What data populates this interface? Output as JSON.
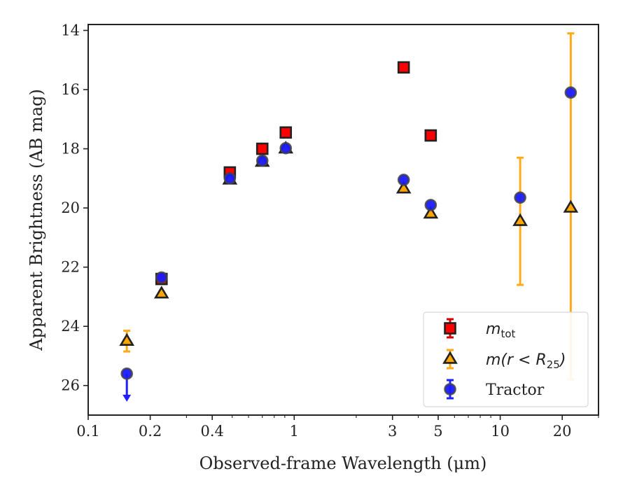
{
  "chart_data": {
    "type": "scatter",
    "title": "",
    "xlabel": "Observed-frame Wavelength (μm)",
    "ylabel": "Apparent Brightness (AB mag)",
    "xscale": "log",
    "xlim": [
      0.1,
      30
    ],
    "ylim": [
      27,
      13.8
    ],
    "y_inverted": true,
    "x_ticks": [
      {
        "value": 0.1,
        "label": "0.1"
      },
      {
        "value": 0.2,
        "label": "0.2"
      },
      {
        "value": 0.4,
        "label": "0.4"
      },
      {
        "value": 1,
        "label": "1"
      },
      {
        "value": 3,
        "label": "3"
      },
      {
        "value": 5,
        "label": "5"
      },
      {
        "value": 10,
        "label": "10"
      },
      {
        "value": 20,
        "label": "20"
      }
    ],
    "x_minor_ticks": [
      0.3,
      0.5,
      0.6,
      0.7,
      0.8,
      0.9,
      2,
      4,
      6,
      7,
      8,
      9,
      30
    ],
    "y_ticks": [
      {
        "value": 14,
        "label": "14"
      },
      {
        "value": 16,
        "label": "16"
      },
      {
        "value": 18,
        "label": "18"
      },
      {
        "value": 20,
        "label": "20"
      },
      {
        "value": 22,
        "label": "22"
      },
      {
        "value": 24,
        "label": "24"
      },
      {
        "value": 26,
        "label": "26"
      }
    ],
    "grid": false,
    "legend_position": "bottom-right",
    "series": [
      {
        "name": "m_tot",
        "legend_main": "m",
        "legend_sub": "tot",
        "marker": "square",
        "color": "#ff0000",
        "edge_color": "#222222",
        "error_color": "#d40000",
        "points": [
          {
            "x": 0.227,
            "y": 22.4
          },
          {
            "x": 0.487,
            "y": 18.8
          },
          {
            "x": 0.7,
            "y": 18.0
          },
          {
            "x": 0.91,
            "y": 17.45
          },
          {
            "x": 3.4,
            "y": 15.25
          },
          {
            "x": 4.6,
            "y": 17.55
          }
        ]
      },
      {
        "name": "m(r<R25)",
        "legend_main": "m(r < R",
        "legend_sub": "25",
        "legend_close": ")",
        "marker": "triangle",
        "color": "#ffa500",
        "edge_color": "#222222",
        "error_color": "#ffaa1a",
        "points": [
          {
            "x": 0.154,
            "y": 24.5,
            "ylow": 24.15,
            "yhigh": 24.85
          },
          {
            "x": 0.227,
            "y": 22.9
          },
          {
            "x": 0.487,
            "y": 19.05
          },
          {
            "x": 0.7,
            "y": 18.45
          },
          {
            "x": 0.91,
            "y": 18.0
          },
          {
            "x": 3.4,
            "y": 19.35
          },
          {
            "x": 4.6,
            "y": 20.2
          },
          {
            "x": 12.5,
            "y": 20.45,
            "ylow": 18.3,
            "yhigh": 22.6
          },
          {
            "x": 22.0,
            "y": 20.0,
            "ylow": 14.1,
            "yhigh": 25.8
          }
        ]
      },
      {
        "name": "Tractor",
        "legend_main": "Tractor",
        "marker": "circle",
        "color": "#1a1aff",
        "edge_color": "#444444",
        "error_color": "#2020ff",
        "points": [
          {
            "x": 0.154,
            "y": 25.6,
            "upper_limit": true
          },
          {
            "x": 0.227,
            "y": 22.35
          },
          {
            "x": 0.487,
            "y": 19.0
          },
          {
            "x": 0.7,
            "y": 18.4
          },
          {
            "x": 0.91,
            "y": 17.98
          },
          {
            "x": 3.4,
            "y": 19.05
          },
          {
            "x": 4.6,
            "y": 19.9
          },
          {
            "x": 12.5,
            "y": 19.65
          },
          {
            "x": 22.0,
            "y": 16.1
          }
        ]
      }
    ]
  }
}
